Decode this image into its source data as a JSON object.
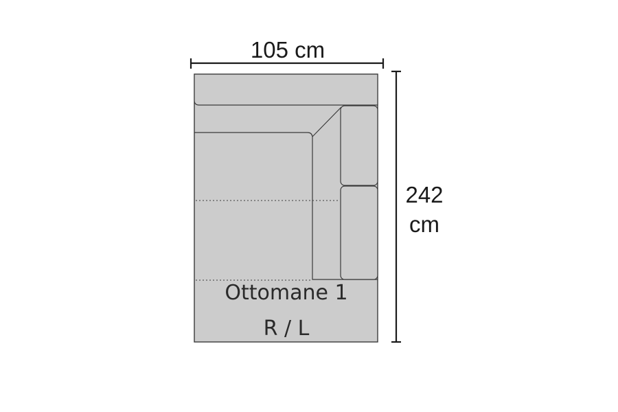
{
  "dimensions": {
    "width_label": "105 cm",
    "height_value": "242",
    "height_unit": "cm"
  },
  "module": {
    "name": "Ottomane 1",
    "side": "R / L"
  },
  "colors": {
    "sofa_fill": "#cccccc",
    "outline": "#3a3a3a",
    "dimension_line": "#1a1a1a"
  }
}
